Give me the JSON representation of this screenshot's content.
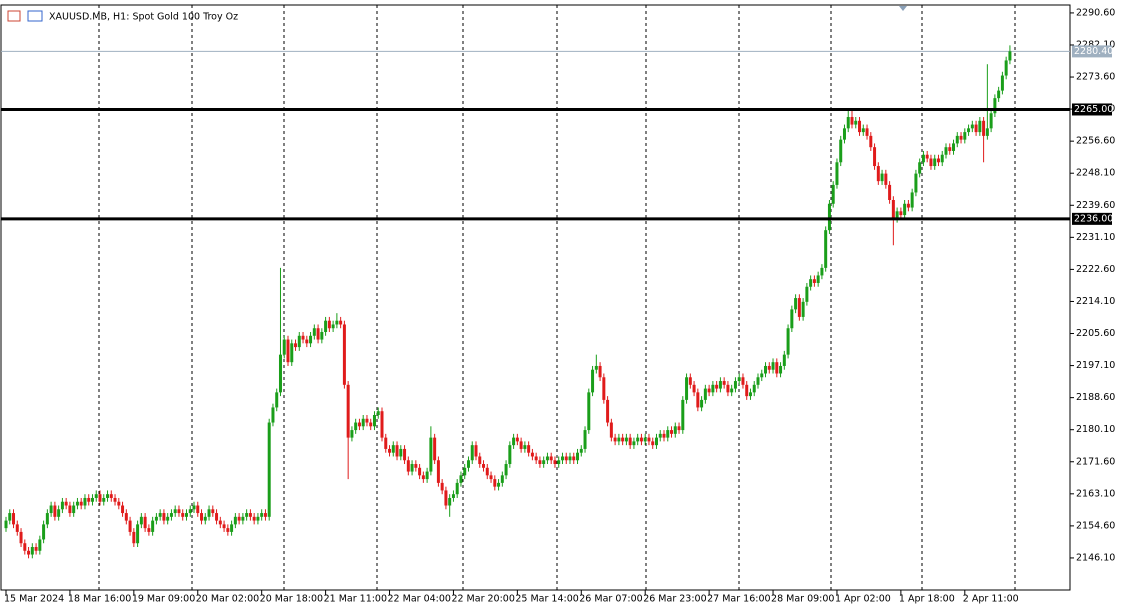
{
  "chart_data": {
    "type": "candlestick",
    "title": "XAUUSD.MB, H1: Spot Gold 100 Troy Oz",
    "up_color": "#1a9e1a",
    "down_color": "#e01b1b",
    "ylim": [
      2137.6,
      2292.7
    ],
    "yticks": [
      {
        "value": 2146.1,
        "label": "2146.10"
      },
      {
        "value": 2154.6,
        "label": "2154.60"
      },
      {
        "value": 2163.1,
        "label": "2163.10"
      },
      {
        "value": 2171.6,
        "label": "2171.60"
      },
      {
        "value": 2180.1,
        "label": "2180.10"
      },
      {
        "value": 2188.6,
        "label": "2188.60"
      },
      {
        "value": 2197.1,
        "label": "2197.10"
      },
      {
        "value": 2205.6,
        "label": "2205.60"
      },
      {
        "value": 2214.1,
        "label": "2214.10"
      },
      {
        "value": 2222.6,
        "label": "2222.60"
      },
      {
        "value": 2231.1,
        "label": "2231.10"
      },
      {
        "value": 2239.6,
        "label": "2239.60"
      },
      {
        "value": 2248.1,
        "label": "2248.10"
      },
      {
        "value": 2256.6,
        "label": "2256.60"
      },
      {
        "value": 2265.1,
        "label": "2265.10"
      },
      {
        "value": 2273.6,
        "label": "2273.60"
      },
      {
        "value": 2282.1,
        "label": "2282.10"
      },
      {
        "value": 2290.6,
        "label": "2290.60"
      }
    ],
    "hlines": [
      {
        "value": 2265,
        "label": "2265.00"
      },
      {
        "value": 2236,
        "label": "2236.00"
      }
    ],
    "last_price": {
      "value": 2280.4,
      "label": "2280.40"
    },
    "categories": [
      "15 Mar 2024",
      null,
      null,
      null,
      null,
      null,
      null,
      null,
      null,
      null,
      null,
      null,
      null,
      null,
      null,
      null,
      null,
      "18 Mar 16:00",
      null,
      null,
      null,
      null,
      null,
      null,
      null,
      null,
      null,
      null,
      null,
      null,
      null,
      null,
      null,
      null,
      "19 Mar 09:00",
      null,
      null,
      null,
      null,
      null,
      null,
      null,
      null,
      null,
      null,
      null,
      null,
      null,
      null,
      null,
      null,
      "20 Mar 02:00",
      null,
      null,
      null,
      null,
      null,
      null,
      null,
      null,
      null,
      null,
      null,
      null,
      null,
      null,
      null,
      null,
      "20 Mar 18:00",
      null,
      null,
      null,
      null,
      null,
      null,
      null,
      null,
      null,
      null,
      null,
      null,
      null,
      null,
      null,
      null,
      "21 Mar 11:00",
      null,
      null,
      null,
      null,
      null,
      null,
      null,
      null,
      null,
      null,
      null,
      null,
      null,
      null,
      null,
      null,
      "22 Mar 04:00",
      null,
      null,
      null,
      null,
      null,
      null,
      null,
      null,
      null,
      null,
      null,
      null,
      null,
      null,
      null,
      null,
      "22 Mar 20:00",
      null,
      null,
      null,
      null,
      null,
      null,
      null,
      null,
      null,
      null,
      null,
      null,
      null,
      null,
      null,
      null,
      "25 Mar 14:00",
      null,
      null,
      null,
      null,
      null,
      null,
      null,
      null,
      null,
      null,
      null,
      null,
      null,
      null,
      null,
      null,
      "26 Mar 07:00",
      null,
      null,
      null,
      null,
      null,
      null,
      null,
      null,
      null,
      null,
      null,
      null,
      null,
      null,
      null,
      null,
      "26 Mar 23:00",
      null,
      null,
      null,
      null,
      null,
      null,
      null,
      null,
      null,
      null,
      null,
      null,
      null,
      null,
      null,
      null,
      "27 Mar 16:00",
      null,
      null,
      null,
      null,
      null,
      null,
      null,
      null,
      null,
      null,
      null,
      null,
      null,
      null,
      null,
      null,
      "28 Mar 09:00",
      null,
      null,
      null,
      null,
      null,
      null,
      null,
      null,
      null,
      null,
      null,
      null,
      null,
      null,
      null,
      null,
      "1 Apr 02:00",
      null,
      null,
      null,
      null,
      null,
      null,
      null,
      null,
      null,
      null,
      null,
      null,
      null,
      null,
      null,
      null,
      "1 Apr 18:00",
      null,
      null,
      null,
      null,
      null,
      null,
      null,
      null,
      null,
      null,
      null,
      null,
      null,
      null,
      null,
      null,
      "2 Apr 11:00",
      null,
      null,
      null,
      null,
      null,
      null,
      null,
      null,
      null,
      null,
      null,
      null
    ],
    "open": [
      2154,
      2156,
      2158,
      2155,
      2153,
      2150,
      2148,
      2147,
      2149,
      2148,
      2151,
      2155,
      2158,
      2160,
      2157,
      2159,
      2161,
      2160,
      2158,
      2160,
      2161,
      2160,
      2162,
      2161,
      2162,
      2163,
      2161,
      2162,
      2163,
      2162,
      2161,
      2160,
      2158,
      2156,
      2153,
      2150,
      2155,
      2157,
      2154,
      2153,
      2156,
      2157,
      2158,
      2156,
      2157,
      2158,
      2159,
      2158,
      2157,
      2158,
      2159,
      2160,
      2158,
      2156,
      2157,
      2159,
      2158,
      2156,
      2155,
      2154,
      2153,
      2155,
      2157,
      2156,
      2157,
      2158,
      2157,
      2156,
      2157,
      2158,
      2157,
      2182,
      2186,
      2190,
      2200,
      2204,
      2198,
      2203,
      2202,
      2205,
      2204,
      2203,
      2205,
      2207,
      2204,
      2206,
      2209,
      2207,
      2208,
      2209,
      2208,
      2192,
      2178,
      2180,
      2182,
      2181,
      2183,
      2182,
      2181,
      2184,
      2185,
      2178,
      2175,
      2174,
      2176,
      2173,
      2175,
      2172,
      2169,
      2171,
      2170,
      2168,
      2167,
      2169,
      2178,
      2172,
      2166,
      2164,
      2160,
      2162,
      2163,
      2166,
      2168,
      2170,
      2172,
      2176,
      2173,
      2171,
      2170,
      2168,
      2167,
      2165,
      2166,
      2168,
      2171,
      2176,
      2178,
      2177,
      2175,
      2176,
      2174,
      2173,
      2172,
      2171,
      2172,
      2173,
      2172,
      2171,
      2172,
      2173,
      2172,
      2173,
      2172,
      2174,
      2175,
      2180,
      2190,
      2196,
      2197,
      2194,
      2188,
      2182,
      2178,
      2177,
      2178,
      2177,
      2178,
      2176,
      2177,
      2178,
      2177,
      2178,
      2177,
      2176,
      2178,
      2179,
      2178,
      2180,
      2179,
      2181,
      2180,
      2188,
      2194,
      2192,
      2190,
      2186,
      2188,
      2191,
      2190,
      2192,
      2191,
      2193,
      2192,
      2190,
      2191,
      2193,
      2194,
      2192,
      2189,
      2190,
      2192,
      2194,
      2195,
      2197,
      2196,
      2198,
      2195,
      2197,
      2200,
      2207,
      2212,
      2215,
      2210,
      2214,
      2218,
      2220,
      2219,
      2221,
      2223,
      2233,
      2240,
      2245,
      2251,
      2257,
      2260,
      2263,
      2261,
      2262,
      2259,
      2260,
      2258,
      2255,
      2250,
      2246,
      2248,
      2245,
      2241,
      2236,
      2238,
      2237,
      2240,
      2239,
      2243,
      2248,
      2251,
      2253,
      2252,
      2250,
      2252,
      2251,
      2253,
      2255,
      2254,
      2256,
      2258,
      2257,
      2259,
      2260,
      2261,
      2259,
      2262,
      2258,
      2260,
      2264,
      2268,
      2270,
      2274,
      2278
    ],
    "high": [
      2157,
      2159,
      2159,
      2156,
      2154,
      2151,
      2149,
      2150,
      2150,
      2152,
      2156,
      2159,
      2161,
      2161,
      2160,
      2162,
      2162,
      2161,
      2161,
      2162,
      2162,
      2163,
      2163,
      2163,
      2164,
      2164,
      2163,
      2164,
      2164,
      2163,
      2162,
      2161,
      2159,
      2157,
      2154,
      2156,
      2158,
      2158,
      2155,
      2157,
      2158,
      2159,
      2159,
      2158,
      2159,
      2160,
      2160,
      2159,
      2159,
      2160,
      2161,
      2161,
      2159,
      2158,
      2160,
      2160,
      2159,
      2157,
      2156,
      2155,
      2156,
      2158,
      2158,
      2158,
      2159,
      2159,
      2158,
      2158,
      2159,
      2159,
      2183,
      2187,
      2191,
      2223,
      2205,
      2205,
      2204,
      2204,
      2206,
      2206,
      2205,
      2206,
      2208,
      2208,
      2207,
      2210,
      2210,
      2209,
      2211,
      2210,
      2209,
      2193,
      2181,
      2183,
      2183,
      2184,
      2184,
      2183,
      2185,
      2186,
      2186,
      2179,
      2176,
      2177,
      2177,
      2176,
      2176,
      2173,
      2172,
      2172,
      2171,
      2169,
      2170,
      2181,
      2179,
      2173,
      2167,
      2165,
      2163,
      2164,
      2167,
      2169,
      2171,
      2173,
      2177,
      2177,
      2174,
      2172,
      2171,
      2169,
      2168,
      2167,
      2169,
      2172,
      2177,
      2179,
      2179,
      2178,
      2177,
      2177,
      2175,
      2174,
      2173,
      2173,
      2174,
      2174,
      2173,
      2173,
      2174,
      2174,
      2174,
      2174,
      2175,
      2176,
      2181,
      2191,
      2197,
      2200,
      2198,
      2195,
      2189,
      2183,
      2179,
      2179,
      2179,
      2179,
      2179,
      2178,
      2179,
      2179,
      2179,
      2179,
      2178,
      2179,
      2180,
      2180,
      2181,
      2181,
      2182,
      2182,
      2189,
      2195,
      2195,
      2193,
      2191,
      2189,
      2192,
      2192,
      2193,
      2193,
      2194,
      2194,
      2193,
      2192,
      2194,
      2195,
      2195,
      2193,
      2191,
      2193,
      2195,
      2196,
      2198,
      2198,
      2199,
      2199,
      2198,
      2201,
      2208,
      2213,
      2216,
      2216,
      2215,
      2219,
      2221,
      2221,
      2222,
      2224,
      2234,
      2241,
      2246,
      2252,
      2258,
      2261,
      2265,
      2265,
      2263,
      2263,
      2261,
      2261,
      2259,
      2256,
      2251,
      2249,
      2249,
      2246,
      2242,
      2239,
      2239,
      2241,
      2241,
      2244,
      2249,
      2252,
      2254,
      2254,
      2253,
      2253,
      2253,
      2254,
      2256,
      2256,
      2257,
      2259,
      2259,
      2260,
      2261,
      2262,
      2262,
      2263,
      2263,
      2277,
      2265,
      2269,
      2271,
      2275,
      2279,
      2282
    ],
    "low": [
      2153,
      2155,
      2154,
      2152,
      2149,
      2147,
      2146,
      2146,
      2147,
      2147,
      2150,
      2154,
      2157,
      2156,
      2156,
      2158,
      2159,
      2157,
      2157,
      2159,
      2159,
      2159,
      2160,
      2160,
      2161,
      2160,
      2160,
      2161,
      2161,
      2160,
      2159,
      2157,
      2155,
      2152,
      2149,
      2149,
      2154,
      2153,
      2152,
      2152,
      2155,
      2156,
      2155,
      2155,
      2156,
      2157,
      2157,
      2156,
      2156,
      2157,
      2158,
      2157,
      2155,
      2155,
      2156,
      2157,
      2155,
      2154,
      2153,
      2152,
      2152,
      2154,
      2155,
      2155,
      2156,
      2156,
      2155,
      2155,
      2156,
      2156,
      2156,
      2181,
      2185,
      2189,
      2199,
      2197,
      2197,
      2201,
      2201,
      2203,
      2202,
      2202,
      2204,
      2203,
      2203,
      2205,
      2206,
      2206,
      2207,
      2207,
      2191,
      2167,
      2177,
      2179,
      2180,
      2180,
      2181,
      2180,
      2180,
      2183,
      2177,
      2174,
      2173,
      2173,
      2172,
      2172,
      2171,
      2168,
      2168,
      2169,
      2167,
      2166,
      2166,
      2168,
      2171,
      2165,
      2163,
      2159,
      2157,
      2161,
      2162,
      2165,
      2167,
      2169,
      2171,
      2172,
      2170,
      2169,
      2167,
      2166,
      2164,
      2164,
      2165,
      2167,
      2170,
      2175,
      2176,
      2174,
      2174,
      2173,
      2172,
      2171,
      2170,
      2170,
      2171,
      2171,
      2170,
      2170,
      2171,
      2171,
      2171,
      2171,
      2171,
      2173,
      2174,
      2179,
      2189,
      2195,
      2193,
      2187,
      2181,
      2177,
      2176,
      2176,
      2176,
      2176,
      2175,
      2175,
      2176,
      2176,
      2176,
      2176,
      2175,
      2175,
      2177,
      2177,
      2177,
      2178,
      2178,
      2179,
      2179,
      2187,
      2191,
      2189,
      2185,
      2185,
      2187,
      2189,
      2189,
      2190,
      2190,
      2191,
      2189,
      2189,
      2190,
      2192,
      2191,
      2188,
      2188,
      2189,
      2191,
      2193,
      2194,
      2195,
      2195,
      2194,
      2194,
      2196,
      2199,
      2206,
      2211,
      2209,
      2209,
      2213,
      2217,
      2218,
      2218,
      2220,
      2222,
      2232,
      2239,
      2244,
      2250,
      2256,
      2259,
      2260,
      2260,
      2258,
      2258,
      2257,
      2254,
      2249,
      2245,
      2245,
      2244,
      2240,
      2229,
      2235,
      2236,
      2236,
      2238,
      2238,
      2242,
      2247,
      2250,
      2251,
      2249,
      2249,
      2250,
      2250,
      2252,
      2253,
      2253,
      2255,
      2256,
      2256,
      2258,
      2259,
      2258,
      2258,
      2251,
      2257,
      2259,
      2263,
      2267,
      2269,
      2273,
      2277
    ],
    "close": [
      2156,
      2158,
      2155,
      2153,
      2150,
      2148,
      2147,
      2149,
      2148,
      2151,
      2155,
      2158,
      2160,
      2157,
      2159,
      2161,
      2160,
      2158,
      2160,
      2161,
      2160,
      2162,
      2161,
      2162,
      2163,
      2161,
      2162,
      2163,
      2162,
      2161,
      2160,
      2158,
      2156,
      2153,
      2150,
      2155,
      2157,
      2154,
      2153,
      2156,
      2157,
      2158,
      2156,
      2157,
      2158,
      2159,
      2158,
      2157,
      2158,
      2159,
      2160,
      2158,
      2156,
      2157,
      2159,
      2158,
      2156,
      2155,
      2154,
      2153,
      2155,
      2157,
      2156,
      2157,
      2158,
      2157,
      2156,
      2157,
      2158,
      2157,
      2182,
      2186,
      2190,
      2200,
      2204,
      2198,
      2203,
      2202,
      2205,
      2204,
      2203,
      2205,
      2207,
      2204,
      2206,
      2209,
      2207,
      2208,
      2209,
      2208,
      2192,
      2178,
      2180,
      2182,
      2181,
      2183,
      2182,
      2181,
      2184,
      2185,
      2178,
      2175,
      2174,
      2176,
      2173,
      2175,
      2172,
      2169,
      2171,
      2170,
      2168,
      2167,
      2169,
      2178,
      2172,
      2166,
      2164,
      2160,
      2162,
      2163,
      2166,
      2168,
      2170,
      2172,
      2176,
      2173,
      2171,
      2170,
      2168,
      2167,
      2165,
      2166,
      2168,
      2171,
      2176,
      2178,
      2177,
      2175,
      2176,
      2174,
      2173,
      2172,
      2171,
      2172,
      2173,
      2172,
      2171,
      2172,
      2173,
      2172,
      2173,
      2172,
      2174,
      2175,
      2180,
      2190,
      2196,
      2197,
      2194,
      2188,
      2182,
      2178,
      2177,
      2178,
      2177,
      2178,
      2176,
      2177,
      2178,
      2177,
      2178,
      2177,
      2176,
      2178,
      2179,
      2178,
      2180,
      2179,
      2181,
      2180,
      2188,
      2194,
      2192,
      2190,
      2186,
      2188,
      2191,
      2190,
      2192,
      2191,
      2193,
      2192,
      2190,
      2191,
      2193,
      2194,
      2192,
      2189,
      2190,
      2192,
      2194,
      2195,
      2197,
      2196,
      2198,
      2195,
      2197,
      2200,
      2207,
      2212,
      2215,
      2210,
      2214,
      2218,
      2220,
      2219,
      2221,
      2223,
      2233,
      2240,
      2245,
      2251,
      2257,
      2260,
      2263,
      2261,
      2262,
      2259,
      2260,
      2258,
      2255,
      2250,
      2246,
      2248,
      2245,
      2241,
      2236,
      2238,
      2237,
      2240,
      2239,
      2243,
      2248,
      2251,
      2253,
      2252,
      2250,
      2252,
      2251,
      2253,
      2255,
      2254,
      2256,
      2258,
      2257,
      2259,
      2260,
      2261,
      2259,
      2262,
      2258,
      2260,
      2264,
      2268,
      2270,
      2274,
      2278,
      2280.4
    ]
  }
}
